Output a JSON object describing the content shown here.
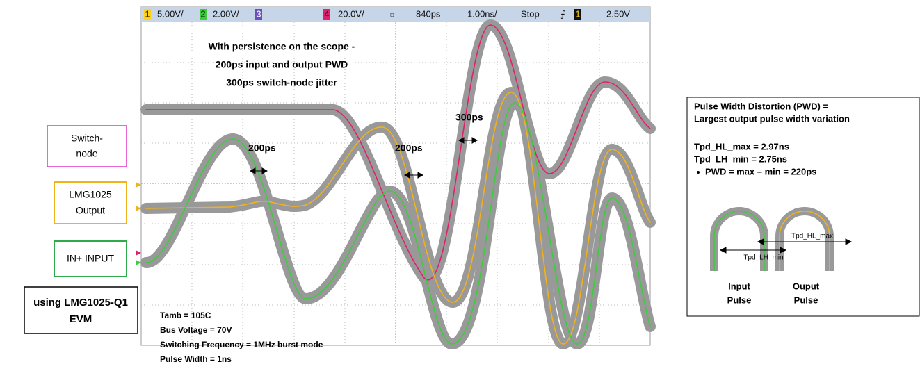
{
  "scope": {
    "status_bar": {
      "ch1_box": "1",
      "ch1_scale": "5.00V/",
      "ch2_box": "2",
      "ch2_scale": "2.00V/",
      "ch3_box": "3",
      "ch4_box": "4",
      "ch4_scale": "20.0V/",
      "delay": "840ps",
      "timebase": "1.00ns/",
      "run_state": "Stop",
      "trigger_source": "1",
      "trigger_level": "2.50V"
    },
    "note": [
      "With persistence on the scope -",
      "200ps input and output PWD",
      "300ps switch-node jitter"
    ],
    "markers": [
      "200ps",
      "200ps",
      "300ps"
    ],
    "conditions": [
      "Tamb = 105C",
      "Bus Voltage = 70V",
      "Switching Frequency = 1MHz burst mode",
      "Pulse Width = 1ns"
    ]
  },
  "labels": {
    "switch_node": [
      "Switch-",
      "node"
    ],
    "output": [
      "LMG1025",
      "Output"
    ],
    "input": "IN+ INPUT",
    "evm": [
      "using LMG1025-Q1",
      "EVM"
    ]
  },
  "pwd_box": {
    "title": [
      "Pulse Width Distortion (PWD) =",
      "Largest output pulse width variation"
    ],
    "lines": [
      "Tpd_HL_max = 2.97ns",
      "Tpd_LH_min = 2.75ns"
    ],
    "bullet": "PWD = max – min = 220ps",
    "diagram": {
      "hl_label": "Tpd_HL_max",
      "lh_label": "Tpd_LH_min",
      "input": [
        "Input",
        "Pulse"
      ],
      "output": [
        "Ouput",
        "Pulse"
      ]
    }
  }
}
